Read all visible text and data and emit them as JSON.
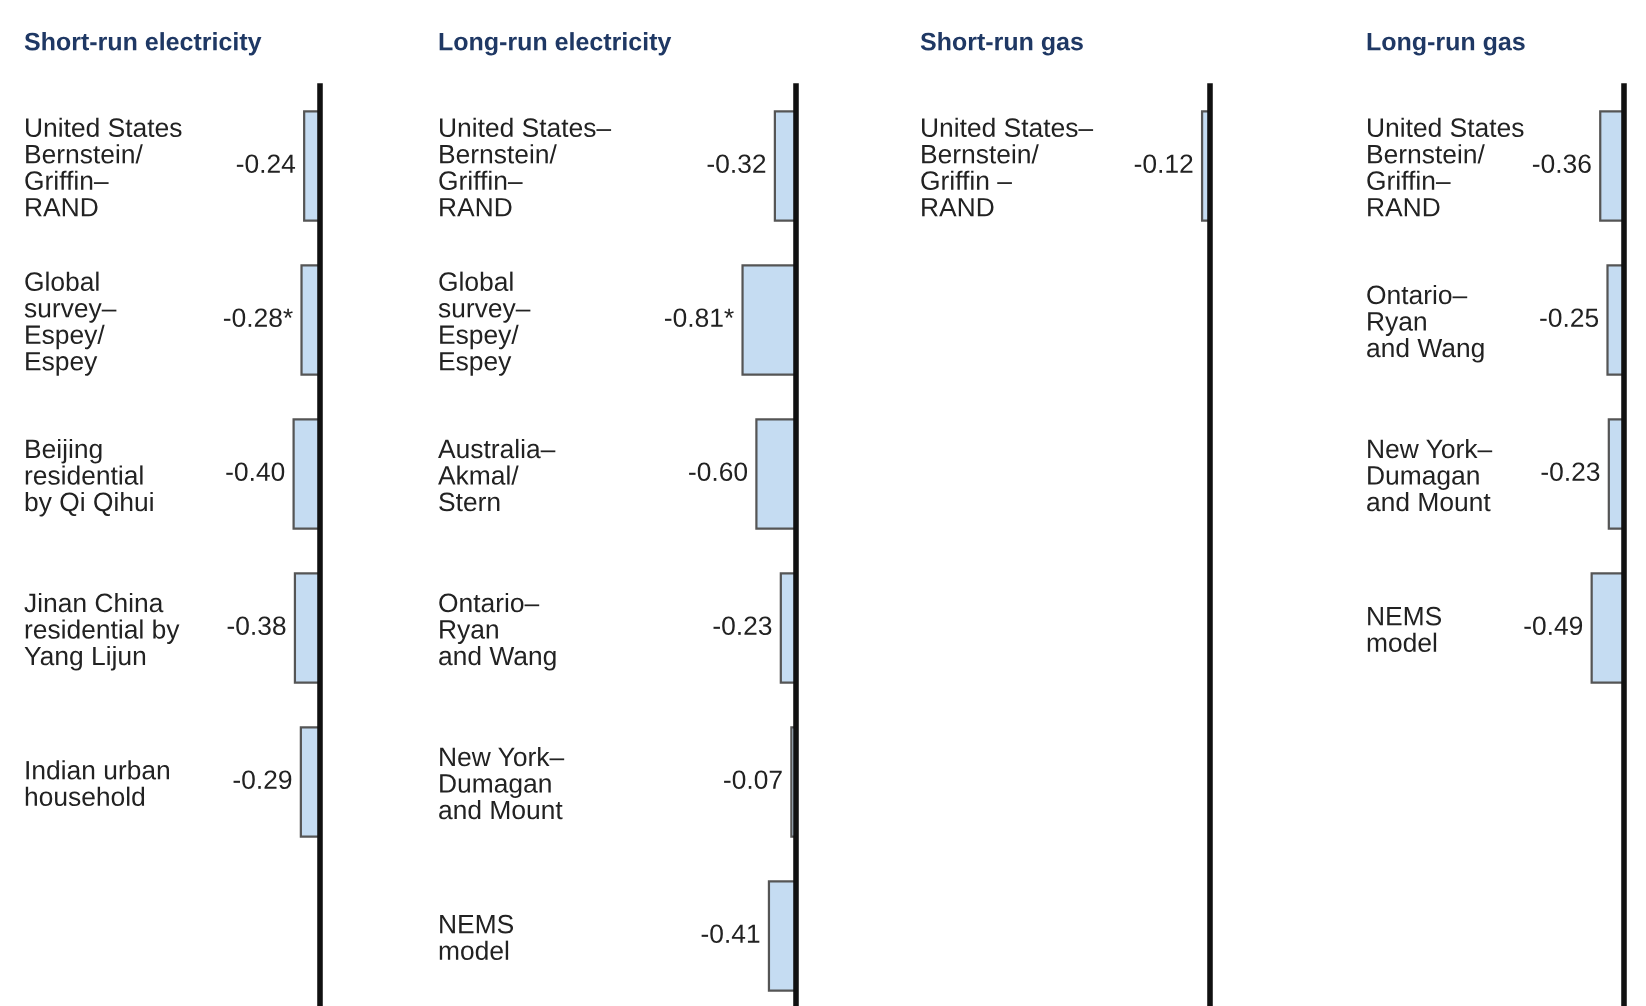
{
  "chart_data": [
    {
      "type": "bar",
      "orientation": "horizontal",
      "title": "Short-run electricity",
      "categories": [
        "United States\nBernstein/\nGriffin–\nRAND",
        "Global\nsurvey–\nEspey/\nEspey",
        "Beijing\nresidential\nby Qi Qihui",
        "Jinan China\nresidential by\nYang Lijun",
        "Indian urban\nhousehold"
      ],
      "values": [
        -0.24,
        -0.28,
        -0.4,
        -0.38,
        -0.29
      ],
      "value_labels": [
        "-0.24",
        "-0.28*",
        "-0.40",
        "-0.38",
        "-0.29"
      ],
      "color": "#c5dcf2",
      "tick_labels": "y"
    },
    {
      "type": "bar",
      "orientation": "horizontal",
      "title": "Long-run electricity",
      "categories": [
        "United States–\nBernstein/\nGriffin–\nRAND",
        "Global\nsurvey–\nEspey/\nEspey",
        "Australia–\nAkmal/\nStern",
        "Ontario–\nRyan\nand Wang",
        "New York–\nDumagan\nand Mount",
        "NEMS\nmodel"
      ],
      "values": [
        -0.32,
        -0.81,
        -0.6,
        -0.23,
        -0.07,
        -0.41
      ],
      "value_labels": [
        "-0.32",
        "-0.81*",
        "-0.60",
        "-0.23",
        "-0.07",
        "-0.41"
      ],
      "color": "#c5dcf2",
      "tick_labels": "y"
    },
    {
      "type": "bar",
      "orientation": "horizontal",
      "title": "Short-run gas",
      "categories": [
        "United States–\nBernstein/\nGriffin –\nRAND"
      ],
      "values": [
        -0.12
      ],
      "value_labels": [
        "-0.12"
      ],
      "color": "#c5dcf2",
      "tick_labels": "y"
    },
    {
      "type": "bar",
      "orientation": "horizontal",
      "title": "Long-run gas",
      "categories": [
        "United States\nBernstein/\nGriffin–\nRAND",
        "Ontario–\nRyan\nand Wang",
        "New York–\nDumagan\nand Mount",
        "NEMS\nmodel"
      ],
      "values": [
        -0.36,
        -0.25,
        -0.23,
        -0.49
      ],
      "value_labels": [
        "-0.36",
        "-0.25",
        "-0.23",
        "-0.49"
      ],
      "color": "#c5dcf2",
      "tick_labels": "y"
    }
  ]
}
